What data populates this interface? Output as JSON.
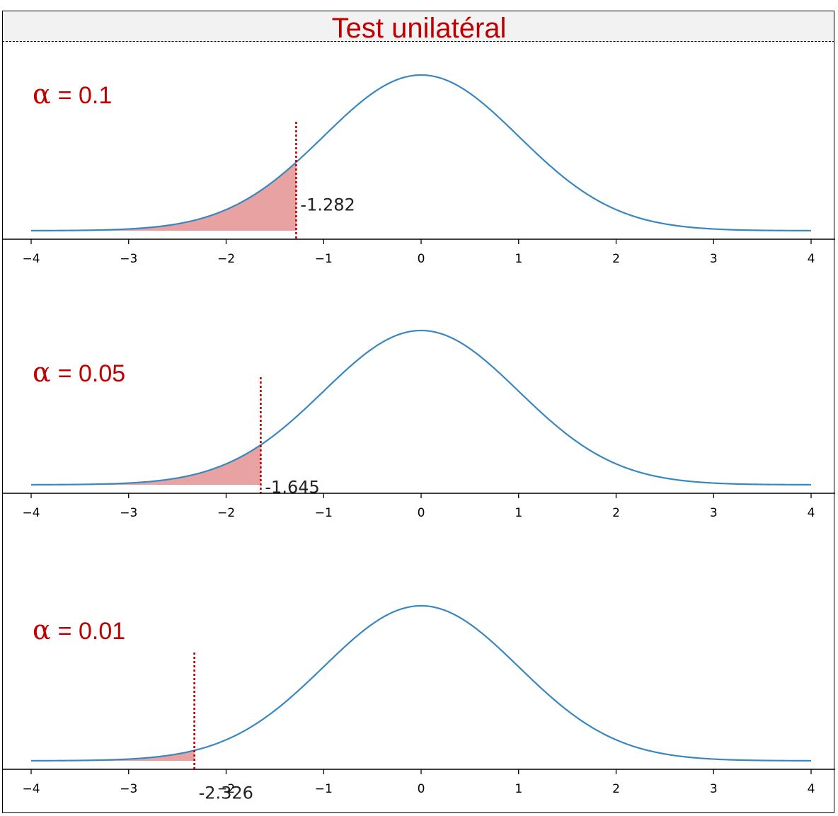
{
  "title": "Test unilatéral",
  "chart_data": [
    {
      "type": "line",
      "alpha_label": "= 0.1",
      "alpha_symbol": "α",
      "critical_value_label": "-1.282",
      "critical_value": -1.282,
      "xlim": [
        -4,
        4
      ],
      "ticks": [
        -4,
        -3,
        -2,
        -1,
        0,
        1,
        2,
        3,
        4
      ],
      "tick_labels": [
        "−4",
        "−3",
        "−2",
        "−1",
        "0",
        "1",
        "2",
        "3",
        "4"
      ],
      "shaded_region": [
        -4,
        -1.282
      ],
      "colors": {
        "curve": "#3a87c0",
        "fill": "#e8a2a2",
        "critical_line": "#c00000",
        "alpha_text": "#c00000"
      }
    },
    {
      "type": "line",
      "alpha_label": "= 0.05",
      "alpha_symbol": "α",
      "critical_value_label": "-1.645",
      "critical_value": -1.645,
      "xlim": [
        -4,
        4
      ],
      "ticks": [
        -4,
        -3,
        -2,
        -1,
        0,
        1,
        2,
        3,
        4
      ],
      "tick_labels": [
        "−4",
        "−3",
        "−2",
        "−1",
        "0",
        "1",
        "2",
        "3",
        "4"
      ],
      "shaded_region": [
        -4,
        -1.645
      ],
      "colors": {
        "curve": "#3a87c0",
        "fill": "#e8a2a2",
        "critical_line": "#c00000",
        "alpha_text": "#c00000"
      }
    },
    {
      "type": "line",
      "alpha_label": "= 0.01",
      "alpha_symbol": "α",
      "critical_value_label": "-2.326",
      "critical_value": -2.326,
      "xlim": [
        -4,
        4
      ],
      "ticks": [
        -4,
        -3,
        -2,
        -1,
        0,
        1,
        2,
        3,
        4
      ],
      "tick_labels": [
        "−4",
        "−3",
        "−2",
        "−1",
        "0",
        "1",
        "2",
        "3",
        "4"
      ],
      "shaded_region": [
        -4,
        -2.326
      ],
      "colors": {
        "curve": "#3a87c0",
        "fill": "#e8a2a2",
        "critical_line": "#c00000",
        "alpha_text": "#c00000"
      }
    }
  ]
}
